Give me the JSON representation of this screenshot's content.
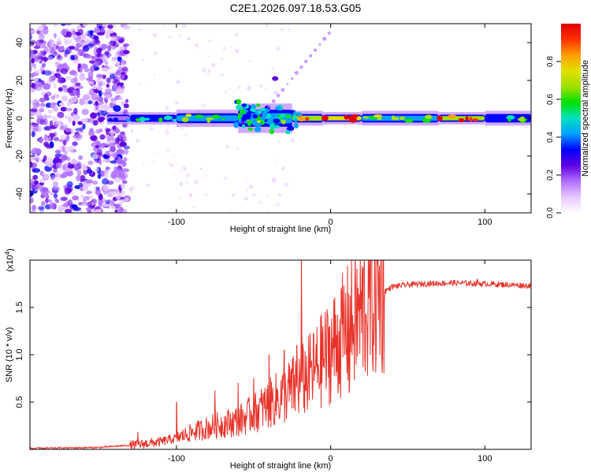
{
  "title": "C2E1.2026.097.18.53.G05",
  "chart_data": [
    {
      "type": "heatmap",
      "xlabel": "Height of straight line (km)",
      "ylabel": "Frequency (Hz)",
      "xlim": [
        -195,
        130
      ],
      "ylim": [
        -50,
        50
      ],
      "xticks": [
        -100,
        0,
        100
      ],
      "yticks": [
        -40,
        -20,
        0,
        20,
        40
      ],
      "xtick_labels": [
        "-100",
        "0",
        "100"
      ],
      "ytick_labels": [
        "-40",
        "-20",
        "0",
        "20",
        "40"
      ],
      "colorbar": {
        "label": "Normalized spectral amplitude",
        "range": [
          0.0,
          1.0
        ],
        "ticks": [
          0.0,
          0.2,
          0.4,
          0.6,
          0.8
        ],
        "tick_labels": [
          "0.0",
          "0.2",
          "0.4",
          "0.6",
          "0.8"
        ],
        "colors": [
          "#ffffff",
          "#e6c8ff",
          "#b070ff",
          "#6000e0",
          "#0000ff",
          "#00a0ff",
          "#00e0c0",
          "#00e000",
          "#a0e000",
          "#e0e000",
          "#ffa000",
          "#ff3000",
          "#e00000"
        ]
      },
      "band": [
        {
          "x": [
            -145,
            -130
          ],
          "amp": 0.25,
          "width": 2.5
        },
        {
          "x": [
            -130,
            -100
          ],
          "amp": 0.45,
          "width": 2.5
        },
        {
          "x": [
            -100,
            -60
          ],
          "amp": 0.55,
          "width": 3.5
        },
        {
          "x": [
            -60,
            -25
          ],
          "amp": 0.5,
          "width": 6
        },
        {
          "x": [
            -25,
            -5
          ],
          "amp": 0.8,
          "width": 3
        },
        {
          "x": [
            -5,
            20
          ],
          "amp": 0.9,
          "width": 2.5
        },
        {
          "x": [
            20,
            70
          ],
          "amp": 0.55,
          "width": 3
        },
        {
          "x": [
            70,
            100
          ],
          "amp": 0.85,
          "width": 2.5
        },
        {
          "x": [
            100,
            130
          ],
          "amp": 0.45,
          "width": 3
        }
      ]
    },
    {
      "type": "line",
      "xlabel": "Height of straight line (km)",
      "ylabel": "SNR (10 * v/v)",
      "multiplier_label": "(x10",
      "multiplier_exp": "4",
      "multiplier_close": ")",
      "xlim": [
        -195,
        130
      ],
      "ylim": [
        0,
        2.0
      ],
      "xticks": [
        -100,
        0,
        100
      ],
      "yticks": [
        0.5,
        1.0,
        1.5
      ],
      "xtick_labels": [
        "-100",
        "0",
        "100"
      ],
      "ytick_labels": [
        "0.5",
        "1.0",
        "1.5"
      ],
      "color": "#e8332a",
      "trend": {
        "x": [
          -195,
          -150,
          -125,
          -110,
          -100,
          -90,
          -75,
          -60,
          -50,
          -40,
          -30,
          -20,
          -10,
          0,
          10,
          20,
          30,
          40,
          50,
          60,
          80,
          100,
          115,
          130
        ],
        "y": [
          0.01,
          0.02,
          0.05,
          0.08,
          0.12,
          0.18,
          0.25,
          0.3,
          0.38,
          0.48,
          0.58,
          0.7,
          0.85,
          1.05,
          1.25,
          1.45,
          1.62,
          1.72,
          1.74,
          1.75,
          1.76,
          1.75,
          1.74,
          1.73
        ]
      },
      "spikes": [
        {
          "x": -125,
          "y": 0.18
        },
        {
          "x": -100,
          "y": 0.5
        },
        {
          "x": -75,
          "y": 0.62
        },
        {
          "x": -60,
          "y": 0.7
        },
        {
          "x": -50,
          "y": 0.75
        },
        {
          "x": -40,
          "y": 1.0
        },
        {
          "x": -30,
          "y": 1.05
        },
        {
          "x": -22,
          "y": 1.1
        },
        {
          "x": -19,
          "y": 2.0
        },
        {
          "x": -5,
          "y": 1.3
        },
        {
          "x": 12,
          "y": 0.6
        },
        {
          "x": 95,
          "y": 1.8
        }
      ]
    }
  ]
}
